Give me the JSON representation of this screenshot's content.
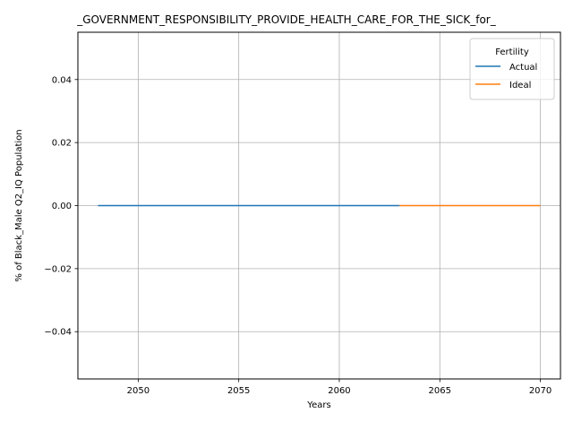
{
  "chart_data": {
    "type": "line",
    "title": "_GOVERNMENT_RESPONSIBILITY_PROVIDE_HEALTH_CARE_FOR_THE_SICK_for_",
    "xlabel": "Years",
    "ylabel": "% of Black_Male Q2_IQ Population",
    "xlim": [
      2047,
      2071
    ],
    "ylim": [
      -0.055,
      0.055
    ],
    "x_ticks": [
      2050,
      2055,
      2060,
      2065,
      2070
    ],
    "y_ticks": [
      -0.04,
      -0.02,
      0.0,
      0.02,
      0.04
    ],
    "y_tick_labels": [
      "−0.04",
      "−0.02",
      "0.00",
      "0.02",
      "0.04"
    ],
    "grid": true,
    "legend": {
      "title": "Fertility",
      "placement": "top-right"
    },
    "series": [
      {
        "name": "Actual",
        "color": "#1f77b4",
        "x": [
          2048,
          2063
        ],
        "y": [
          0,
          0
        ]
      },
      {
        "name": "Ideal",
        "color": "#ff7f0e",
        "x": [
          2063,
          2070
        ],
        "y": [
          0,
          0
        ]
      }
    ]
  }
}
